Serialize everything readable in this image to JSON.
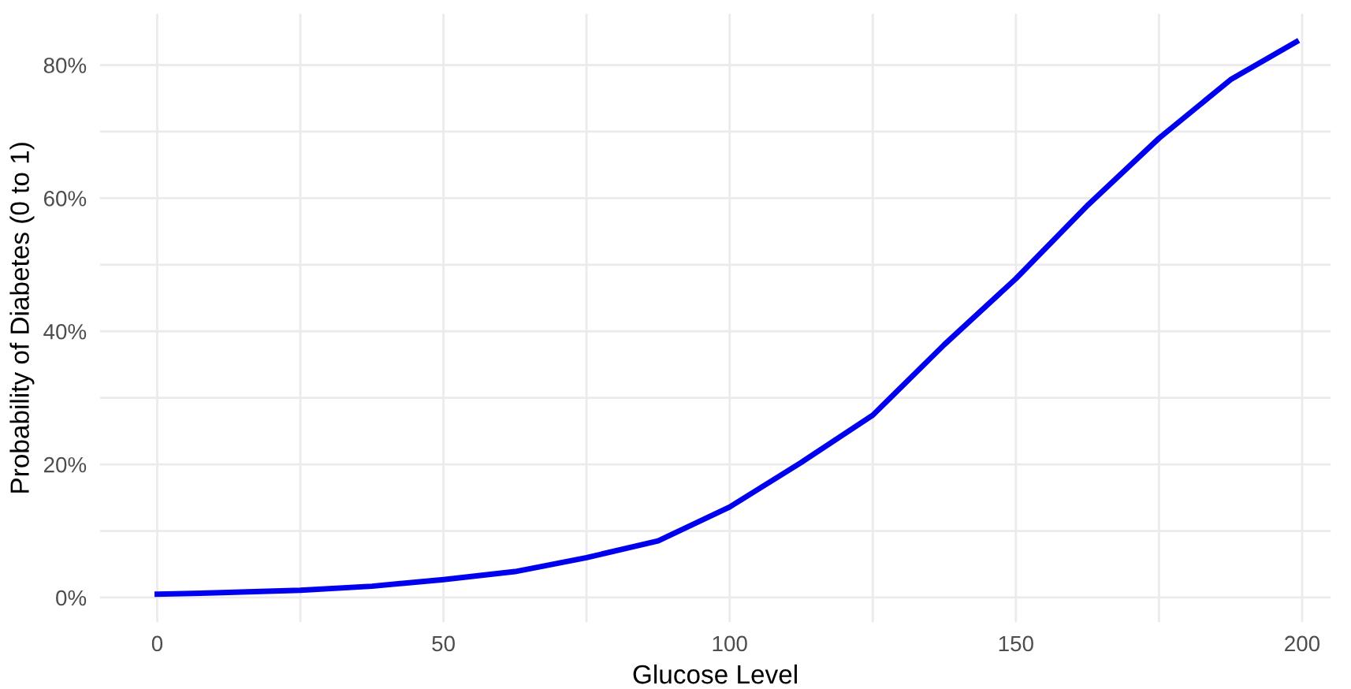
{
  "chart_data": {
    "type": "line",
    "xlabel": "Glucose Level",
    "ylabel": "Probability of Diabetes (0 to 1)",
    "x": [
      0,
      10,
      25,
      37.5,
      50,
      62.5,
      75,
      87.5,
      100,
      112.5,
      125,
      137.5,
      150,
      162.5,
      175,
      187.5,
      199
    ],
    "series": [
      {
        "color": "#0000ee",
        "values": [
          0.5,
          0.7,
          1.1,
          1.7,
          2.7,
          3.9,
          6.0,
          8.5,
          13.6,
          20.3,
          27.4,
          38.0,
          47.9,
          58.9,
          69.0,
          77.8,
          83.5
        ]
      }
    ],
    "xlim": [
      -10,
      205
    ],
    "ylim": [
      -3.7,
      87.7
    ],
    "xticks": [
      0,
      {
        "value": 25,
        "label": null
      },
      50,
      {
        "value": 75,
        "label": null
      },
      100,
      {
        "value": 125,
        "label": null
      },
      150,
      {
        "value": 175,
        "label": null
      },
      200
    ],
    "yticks": [
      {
        "value": 0,
        "label": "0%"
      },
      {
        "value": 10,
        "label": null
      },
      {
        "value": 20,
        "label": "20%"
      },
      {
        "value": 30,
        "label": null
      },
      {
        "value": 40,
        "label": "40%"
      },
      {
        "value": 50,
        "label": null
      },
      {
        "value": 60,
        "label": "60%"
      },
      {
        "value": 70,
        "label": null
      },
      {
        "value": 80,
        "label": "80%"
      }
    ],
    "grid": true,
    "legend": false,
    "marker": "none",
    "line_style": "solid"
  }
}
